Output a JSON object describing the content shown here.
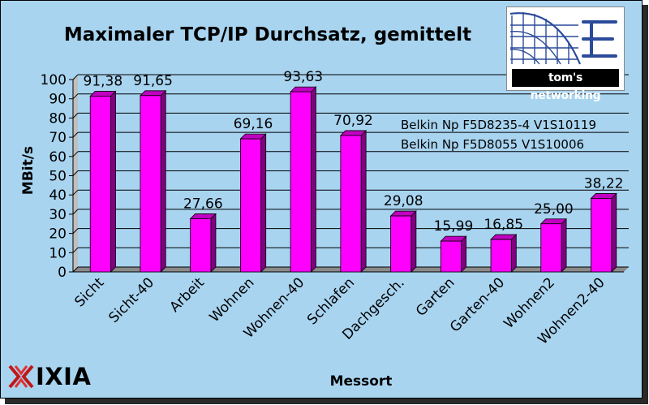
{
  "chart_data": {
    "type": "bar",
    "title": "Maximaler TCP/IP Durchsatz, gemittelt",
    "xlabel": "Messort",
    "ylabel": "MBit/s",
    "ylim": [
      0,
      100
    ],
    "yticks": [
      0,
      10,
      20,
      30,
      40,
      50,
      60,
      70,
      80,
      90,
      100
    ],
    "grid": true,
    "categories": [
      "Sicht",
      "Sicht-40",
      "Arbeit",
      "Wohnen",
      "Wohnen-40",
      "Schlafen",
      "Dachgesch.",
      "Garten",
      "Garten-40",
      "Wohnen2",
      "Wohnen2-40"
    ],
    "values": [
      91.38,
      91.65,
      27.66,
      69.16,
      93.63,
      70.92,
      29.08,
      15.99,
      16.85,
      25.0,
      38.22
    ],
    "data_labels": [
      "91,38",
      "91,65",
      "27,66",
      "69,16",
      "93,63",
      "70,92",
      "29,08",
      "15,99",
      "16,85",
      "25,00",
      "38,22"
    ],
    "annotations": [
      "Belkin Np F5D8235-4 V1S10119",
      "Belkin Np F5D8055 V1S10006"
    ],
    "bar_color": "#ff00ff",
    "background_color": "#a8d4f0"
  },
  "logos": {
    "toms": "tom's networking",
    "ixia": "IXIA"
  }
}
